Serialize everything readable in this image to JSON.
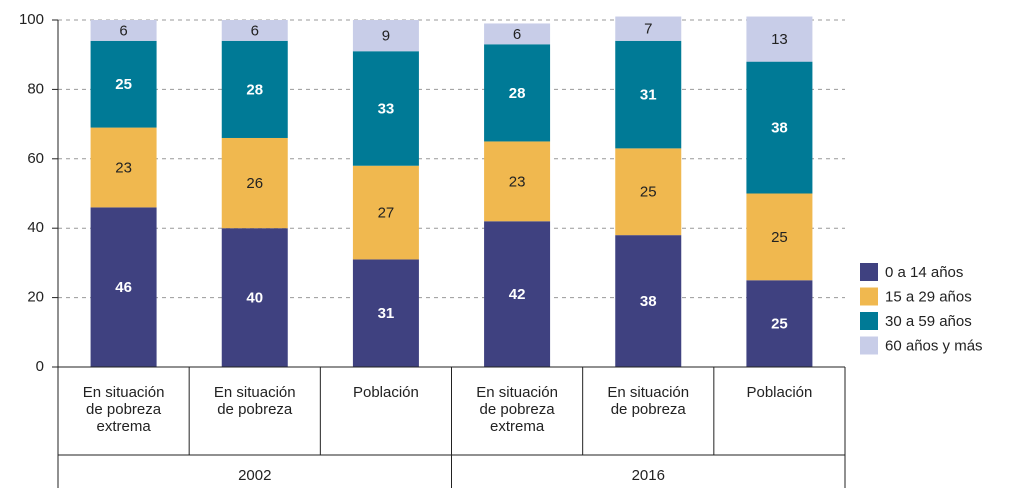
{
  "chart_data": {
    "type": "stacked_bar",
    "categories": [
      [
        "En situación",
        "de pobreza",
        "extrema"
      ],
      [
        "En situación",
        "de pobreza"
      ],
      [
        "Población"
      ],
      [
        "En situación",
        "de pobreza",
        "extrema"
      ],
      [
        "En situación",
        "de pobreza"
      ],
      [
        "Población"
      ]
    ],
    "groups": [
      {
        "label": "2002",
        "size": 3
      },
      {
        "label": "2016",
        "size": 3
      }
    ],
    "series": [
      {
        "name": "0 a 14 años",
        "color": "#3f4180",
        "label_color": "#ffffff",
        "label_bold": true,
        "values": [
          46,
          40,
          31,
          42,
          38,
          25
        ]
      },
      {
        "name": "15 a 29 años",
        "color": "#f0b84f",
        "label_color": "#222222",
        "label_bold": false,
        "values": [
          23,
          26,
          27,
          23,
          25,
          25
        ]
      },
      {
        "name": "30 a 59 años",
        "color": "#007a96",
        "label_color": "#ffffff",
        "label_bold": true,
        "values": [
          25,
          28,
          33,
          28,
          31,
          38
        ]
      },
      {
        "name": "60 años y más",
        "color": "#c8cde8",
        "label_color": "#222222",
        "label_bold": false,
        "values": [
          6,
          6,
          9,
          6,
          7,
          13
        ]
      }
    ],
    "ylim": [
      0,
      100
    ],
    "yticks": [
      0,
      20,
      40,
      60,
      80,
      100
    ],
    "grid": true,
    "legend": "right"
  }
}
